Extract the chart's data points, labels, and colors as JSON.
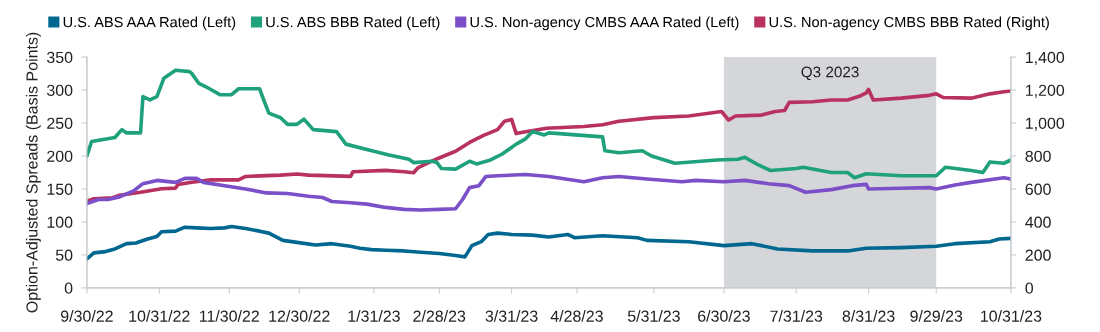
{
  "chart_data": {
    "type": "line",
    "ylabel": "Option-Adjusted Spreads (Basis Points)",
    "xlim": [
      "2022-09-30",
      "2023-10-31"
    ],
    "xticks": [
      {
        "value": "2022-09-30",
        "label": "9/30/22"
      },
      {
        "value": "2022-10-31",
        "label": "10/31/22"
      },
      {
        "value": "2022-11-30",
        "label": "11/30/22"
      },
      {
        "value": "2022-12-30",
        "label": "12/30/22"
      },
      {
        "value": "2023-01-31",
        "label": "1/31/23"
      },
      {
        "value": "2023-02-28",
        "label": "2/28/23"
      },
      {
        "value": "2023-03-31",
        "label": "3/31/23"
      },
      {
        "value": "2023-04-28",
        "label": "4/28/23"
      },
      {
        "value": "2023-05-31",
        "label": "5/31/23"
      },
      {
        "value": "2023-06-30",
        "label": "6/30/23"
      },
      {
        "value": "2023-07-31",
        "label": "7/31/23"
      },
      {
        "value": "2023-08-31",
        "label": "8/31/23"
      },
      {
        "value": "2023-09-29",
        "label": "9/29/23"
      },
      {
        "value": "2023-10-31",
        "label": "10/31/23"
      }
    ],
    "ylim": [
      0,
      350
    ],
    "yticks": [
      0,
      50,
      100,
      150,
      200,
      250,
      300,
      350
    ],
    "y2lim": [
      0,
      1400
    ],
    "y2ticks": [
      0,
      {
        "value": 200,
        "label": "200"
      },
      {
        "value": 400,
        "label": "400"
      },
      {
        "value": 600,
        "label": "600"
      },
      {
        "value": 800,
        "label": "800"
      },
      {
        "value": 1000,
        "label": "1,000"
      },
      {
        "value": 1200,
        "label": "1,200"
      },
      {
        "value": 1400,
        "label": "1,400"
      }
    ],
    "grid": false,
    "legend": "top",
    "marker": "none",
    "line_style": "solid",
    "bands": [
      {
        "axis": "x",
        "from": "2023-06-30",
        "to": "2023-09-29",
        "label": "Q3 2023",
        "color": "#d4d6d9"
      }
    ],
    "series": [
      {
        "name": "U.S. ABS AAA Rated (Left)",
        "color": "#006890",
        "x": [
          "2022-09-30",
          "2022-10-03",
          "2022-10-08",
          "2022-10-12",
          "2022-10-17",
          "2022-10-21",
          "2022-10-26",
          "2022-10-30",
          "2022-11-01",
          "2022-11-07",
          "2022-11-11",
          "2022-11-16",
          "2022-11-22",
          "2022-11-28",
          "2022-12-01",
          "2022-12-07",
          "2022-12-13",
          "2022-12-17",
          "2022-12-23",
          "2022-12-29",
          "2023-01-06",
          "2023-01-13",
          "2023-01-21",
          "2023-01-25",
          "2023-01-30",
          "2023-02-05",
          "2023-02-13",
          "2023-02-20",
          "2023-02-28",
          "2023-03-07",
          "2023-03-11",
          "2023-03-14",
          "2023-03-18",
          "2023-03-21",
          "2023-03-25",
          "2023-03-31",
          "2023-04-09",
          "2023-04-16",
          "2023-04-24",
          "2023-04-27",
          "2023-05-09",
          "2023-05-24",
          "2023-05-28",
          "2023-06-15",
          "2023-06-30",
          "2023-07-12",
          "2023-07-23",
          "2023-08-07",
          "2023-08-22",
          "2023-08-30",
          "2023-09-14",
          "2023-09-29",
          "2023-10-07",
          "2023-10-22",
          "2023-10-26",
          "2023-10-31"
        ],
        "values": [
          44,
          53,
          55,
          59,
          67,
          68,
          74,
          78,
          85,
          86,
          92,
          91,
          90,
          91,
          93,
          90,
          86,
          83,
          72,
          69,
          65,
          67,
          63,
          60,
          58,
          57,
          56,
          54,
          52,
          49,
          47,
          64,
          70,
          81,
          83,
          81,
          80,
          77,
          81,
          76,
          79,
          76,
          72,
          70,
          64,
          67,
          59,
          56,
          56,
          60,
          61,
          63,
          67,
          70,
          74,
          75
        ]
      },
      {
        "name": "U.S. ABS BBB Rated (Left)",
        "color": "#1fa17c",
        "x": [
          "2022-09-30",
          "2022-10-02",
          "2022-10-12",
          "2022-10-15",
          "2022-10-17",
          "2022-10-23",
          "2022-10-24",
          "2022-10-27",
          "2022-10-30",
          "2022-11-02",
          "2022-11-07",
          "2022-11-13",
          "2022-11-14",
          "2022-11-17",
          "2022-11-20",
          "2022-11-26",
          "2022-12-01",
          "2022-12-04",
          "2022-12-13",
          "2022-12-15",
          "2022-12-17",
          "2022-12-22",
          "2022-12-25",
          "2022-12-29",
          "2023-01-01",
          "2023-01-05",
          "2023-01-15",
          "2023-01-19",
          "2023-01-28",
          "2023-02-06",
          "2023-02-15",
          "2023-02-17",
          "2023-02-25",
          "2023-02-27",
          "2023-03-01",
          "2023-03-07",
          "2023-03-13",
          "2023-03-16",
          "2023-03-22",
          "2023-03-27",
          "2023-04-02",
          "2023-04-06",
          "2023-04-09",
          "2023-04-14",
          "2023-04-16",
          "2023-05-09",
          "2023-05-10",
          "2023-05-16",
          "2023-05-26",
          "2023-05-30",
          "2023-06-09",
          "2023-06-27",
          "2023-07-06",
          "2023-07-09",
          "2023-07-15",
          "2023-07-20",
          "2023-07-31",
          "2023-08-03",
          "2023-08-15",
          "2023-08-22",
          "2023-08-25",
          "2023-08-30",
          "2023-09-14",
          "2023-09-29",
          "2023-10-03",
          "2023-10-14",
          "2023-10-19",
          "2023-10-22",
          "2023-10-28",
          "2023-10-31"
        ],
        "values": [
          200,
          222,
          228,
          240,
          235,
          235,
          290,
          285,
          290,
          318,
          330,
          328,
          325,
          310,
          305,
          293,
          293,
          302,
          302,
          283,
          265,
          258,
          248,
          248,
          256,
          240,
          237,
          218,
          210,
          202,
          195,
          190,
          192,
          190,
          181,
          180,
          192,
          188,
          194,
          203,
          218,
          226,
          237,
          232,
          235,
          229,
          208,
          205,
          208,
          200,
          189,
          194,
          195,
          198,
          186,
          178,
          181,
          183,
          175,
          175,
          167,
          173,
          170,
          170,
          183,
          178,
          175,
          191,
          189,
          194
        ]
      },
      {
        "name": "U.S. Non-agency CMBS AAA Rated (Left)",
        "color": "#7b4fc8",
        "x": [
          "2022-09-30",
          "2022-10-05",
          "2022-10-09",
          "2022-10-14",
          "2022-10-20",
          "2022-10-24",
          "2022-10-30",
          "2022-11-07",
          "2022-11-11",
          "2022-11-16",
          "2022-11-19",
          "2022-11-28",
          "2022-12-07",
          "2022-12-16",
          "2022-12-25",
          "2023-01-03",
          "2023-01-09",
          "2023-01-13",
          "2023-01-21",
          "2023-01-28",
          "2023-02-05",
          "2023-02-13",
          "2023-02-20",
          "2023-02-28",
          "2023-03-07",
          "2023-03-10",
          "2023-03-13",
          "2023-03-17",
          "2023-03-20",
          "2023-03-25",
          "2023-04-06",
          "2023-04-16",
          "2023-05-01",
          "2023-05-09",
          "2023-05-16",
          "2023-05-28",
          "2023-06-12",
          "2023-06-18",
          "2023-06-30",
          "2023-07-09",
          "2023-07-19",
          "2023-07-28",
          "2023-08-04",
          "2023-08-15",
          "2023-08-24",
          "2023-08-30",
          "2023-08-31",
          "2023-09-14",
          "2023-09-26",
          "2023-09-29",
          "2023-10-07",
          "2023-10-14",
          "2023-10-28",
          "2023-10-31"
        ],
        "values": [
          128,
          134,
          134,
          138,
          147,
          158,
          163,
          160,
          166,
          166,
          160,
          155,
          150,
          144,
          143,
          139,
          137,
          131,
          129,
          127,
          122,
          119,
          118,
          119,
          120,
          134,
          152,
          155,
          169,
          170,
          172,
          169,
          161,
          167,
          169,
          165,
          161,
          163,
          161,
          163,
          158,
          155,
          145,
          149,
          155,
          157,
          150,
          151,
          152,
          150,
          156,
          160,
          167,
          165
        ]
      },
      {
        "name": "U.S. Non-agency CMBS BBB Rated (Right)",
        "color": "#b8315f",
        "axis": "y2",
        "x": [
          "2022-09-30",
          "2022-10-03",
          "2022-10-11",
          "2022-10-14",
          "2022-10-23",
          "2022-11-01",
          "2022-11-07",
          "2022-11-08",
          "2022-11-14",
          "2022-11-22",
          "2022-12-04",
          "2022-12-07",
          "2022-12-22",
          "2022-12-29",
          "2023-01-03",
          "2023-01-21",
          "2023-01-22",
          "2023-02-05",
          "2023-02-13",
          "2023-02-17",
          "2023-02-19",
          "2023-02-25",
          "2023-03-01",
          "2023-03-07",
          "2023-03-13",
          "2023-03-19",
          "2023-03-25",
          "2023-03-28",
          "2023-03-31",
          "2023-04-02",
          "2023-04-06",
          "2023-04-15",
          "2023-05-01",
          "2023-05-09",
          "2023-05-16",
          "2023-05-31",
          "2023-06-15",
          "2023-06-29",
          "2023-07-02",
          "2023-07-05",
          "2023-07-16",
          "2023-07-22",
          "2023-07-26",
          "2023-07-28",
          "2023-08-07",
          "2023-08-15",
          "2023-08-22",
          "2023-08-27",
          "2023-08-30",
          "2023-08-31",
          "2023-09-02",
          "2023-09-14",
          "2023-09-26",
          "2023-09-29",
          "2023-10-02",
          "2023-10-14",
          "2023-10-22",
          "2023-10-28",
          "2023-10-31"
        ],
        "values": [
          526,
          541,
          547,
          562,
          580,
          601,
          605,
          627,
          641,
          655,
          655,
          676,
          684,
          691,
          684,
          676,
          704,
          713,
          704,
          698,
          730,
          770,
          794,
          829,
          882,
          925,
          960,
          1011,
          1022,
          936,
          947,
          968,
          979,
          990,
          1011,
          1033,
          1043,
          1070,
          1018,
          1043,
          1048,
          1070,
          1076,
          1125,
          1129,
          1140,
          1140,
          1162,
          1183,
          1204,
          1140,
          1151,
          1168,
          1177,
          1155,
          1151,
          1177,
          1190,
          1194
        ]
      }
    ]
  }
}
